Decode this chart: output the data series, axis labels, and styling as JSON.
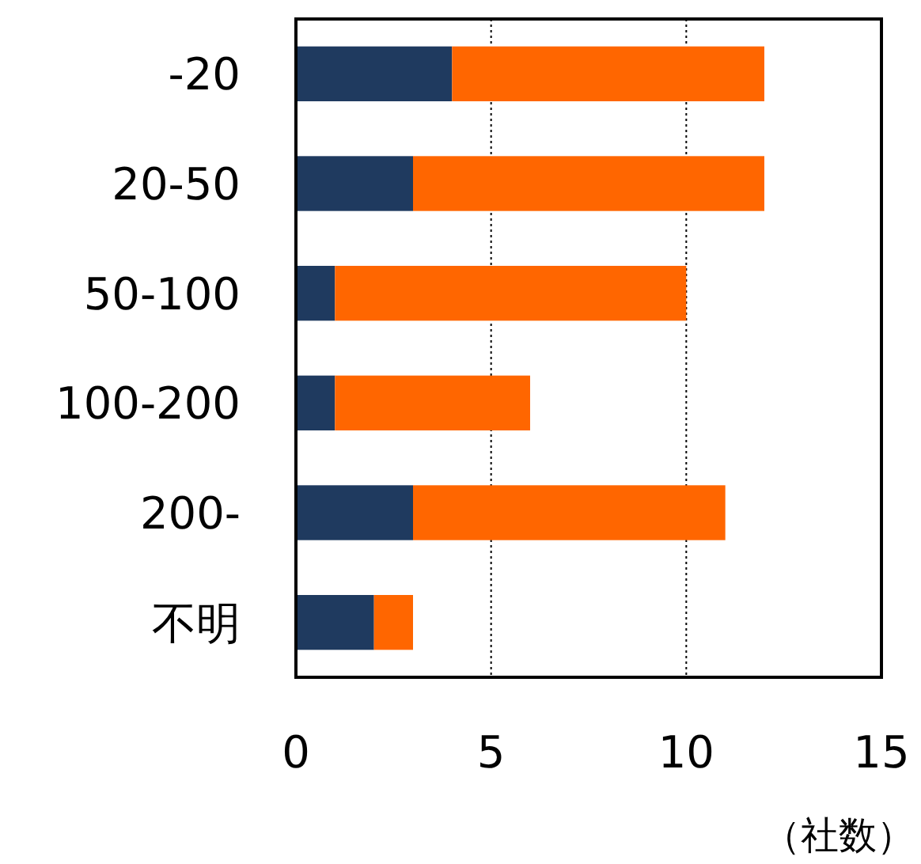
{
  "chart_data": {
    "type": "bar",
    "orientation": "horizontal",
    "stacked": true,
    "xlabel": "（社数）",
    "categories": [
      "-20",
      "20-50",
      "50-100",
      "100-200",
      "200-",
      "不明"
    ],
    "series": [
      {
        "color": "#1f3a5f",
        "values": [
          4,
          3,
          1,
          1,
          3,
          2
        ]
      },
      {
        "color": "#ff6600",
        "values": [
          8,
          9,
          9,
          5,
          8,
          1
        ]
      }
    ],
    "xlim": [
      0,
      15
    ],
    "xticks": [
      0,
      5,
      10,
      15
    ],
    "grid": "x"
  }
}
